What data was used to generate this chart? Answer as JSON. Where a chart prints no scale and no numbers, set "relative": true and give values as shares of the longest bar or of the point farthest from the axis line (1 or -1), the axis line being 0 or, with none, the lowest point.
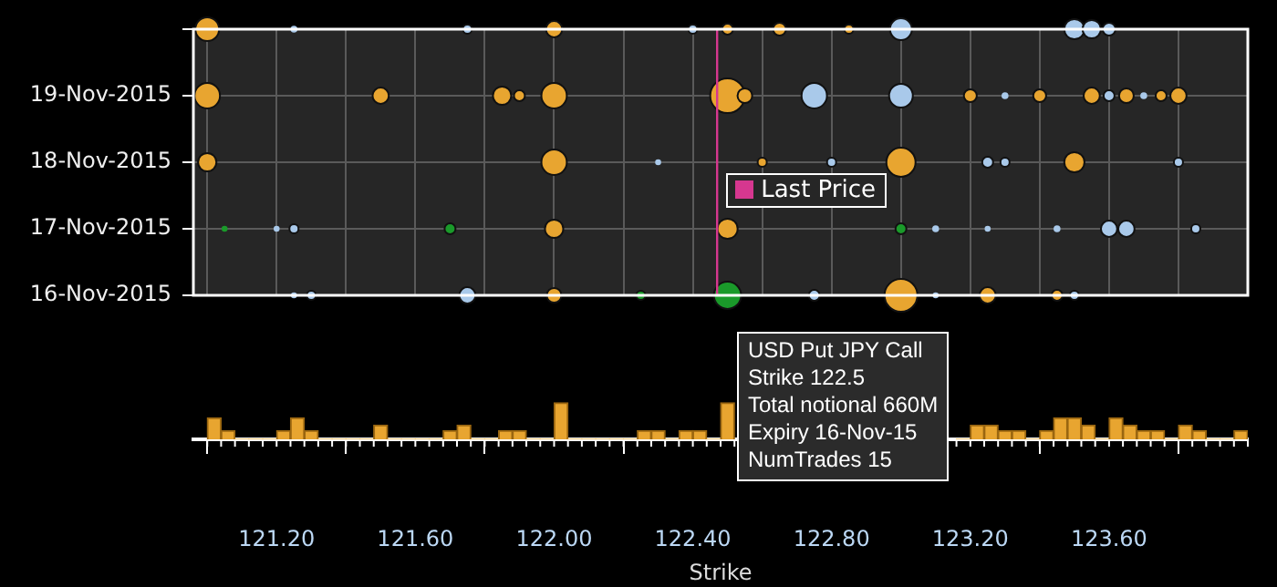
{
  "chart_data": [
    {
      "type": "bubble",
      "orientation": "horizontal",
      "categories": [
        null,
        "19-Nov-2015",
        "18-Nov-2015",
        "17-Nov-2015",
        "16-Nov-2015"
      ],
      "xlim": [
        120.96,
        124.0
      ],
      "xticks": [
        {
          "value": 121.0,
          "label": null
        },
        {
          "value": 121.2,
          "label": null
        },
        {
          "value": 121.4,
          "label": null
        },
        {
          "value": 121.6,
          "label": null
        },
        {
          "value": 121.8,
          "label": null
        },
        {
          "value": 122.0,
          "label": null
        },
        {
          "value": 122.2,
          "label": null
        },
        {
          "value": 122.4,
          "label": null
        },
        {
          "value": 122.6,
          "label": null
        },
        {
          "value": 122.8,
          "label": null
        },
        {
          "value": 123.0,
          "label": null
        },
        {
          "value": 123.2,
          "label": null
        },
        {
          "value": 123.4,
          "label": null
        },
        {
          "value": 123.6,
          "label": null
        },
        {
          "value": 123.8,
          "label": null
        }
      ],
      "tick_labels": "y",
      "grid": true,
      "legend": false,
      "ref_lines": [
        {
          "axis": "x",
          "value": 122.47,
          "label": "Last Price",
          "color": "#d6378f"
        }
      ],
      "series": [
        {
          "color": "#e8a530",
          "values": [
            121.0,
            122.0,
            122.5,
            122.65,
            122.85,
            121.0,
            121.5,
            121.85,
            121.9,
            122.0,
            122.5,
            122.55,
            123.2,
            123.4,
            123.55,
            123.65,
            123.75,
            123.8,
            121.0,
            122.0,
            122.6,
            123.0,
            123.5,
            122.0,
            122.5,
            122.0,
            123.0,
            123.25,
            123.45
          ],
          "x": [
            null,
            null,
            null,
            null,
            null,
            "19-Nov-2015",
            "19-Nov-2015",
            "19-Nov-2015",
            "19-Nov-2015",
            "19-Nov-2015",
            "19-Nov-2015",
            "19-Nov-2015",
            "19-Nov-2015",
            "19-Nov-2015",
            "19-Nov-2015",
            "19-Nov-2015",
            "19-Nov-2015",
            "19-Nov-2015",
            "18-Nov-2015",
            "18-Nov-2015",
            "18-Nov-2015",
            "18-Nov-2015",
            "18-Nov-2015",
            "17-Nov-2015",
            "17-Nov-2015",
            "16-Nov-2015",
            "16-Nov-2015",
            "16-Nov-2015",
            "16-Nov-2015"
          ],
          "sizes": [
            0.47,
            0.22,
            0.1,
            0.14,
            0.07,
            0.54,
            0.22,
            0.28,
            0.1,
            0.54,
            1,
            0.18,
            0.14,
            0.14,
            0.22,
            0.18,
            0.1,
            0.22,
            0.28,
            0.54,
            0.07,
            0.71,
            0.34,
            0.28,
            0.34,
            0.18,
            0.9,
            0.22,
            0.1
          ]
        },
        {
          "color": "#a9c9ea",
          "values": [
            121.25,
            121.75,
            122.4,
            123.0,
            123.5,
            123.55,
            123.6,
            122.75,
            123.0,
            123.3,
            123.6,
            123.7,
            122.3,
            122.8,
            123.25,
            123.3,
            123.8,
            121.2,
            121.25,
            123.1,
            123.25,
            123.45,
            123.6,
            123.65,
            123.85,
            121.25,
            121.3,
            121.75,
            122.75,
            123.1,
            123.5
          ],
          "x": [
            null,
            null,
            null,
            null,
            null,
            null,
            null,
            "19-Nov-2015",
            "19-Nov-2015",
            "19-Nov-2015",
            "19-Nov-2015",
            "19-Nov-2015",
            "18-Nov-2015",
            "18-Nov-2015",
            "18-Nov-2015",
            "18-Nov-2015",
            "18-Nov-2015",
            "17-Nov-2015",
            "17-Nov-2015",
            "17-Nov-2015",
            "17-Nov-2015",
            "17-Nov-2015",
            "17-Nov-2015",
            "17-Nov-2015",
            "17-Nov-2015",
            "16-Nov-2015",
            "16-Nov-2015",
            "16-Nov-2015",
            "16-Nov-2015",
            "16-Nov-2015",
            "16-Nov-2015"
          ],
          "sizes": [
            0.04,
            0.07,
            0.07,
            0.4,
            0.34,
            0.28,
            0.14,
            0.54,
            0.47,
            0.04,
            0.1,
            0.04,
            0.03,
            0.07,
            0.1,
            0.07,
            0.07,
            0.03,
            0.07,
            0.04,
            0.03,
            0.04,
            0.22,
            0.22,
            0.07,
            0.03,
            0.07,
            0.22,
            0.1,
            0.03,
            0.07
          ]
        },
        {
          "color": "#1a9a2a",
          "values": [
            121.05,
            121.7,
            123.0,
            122.25,
            122.5
          ],
          "x": [
            "17-Nov-2015",
            "17-Nov-2015",
            "17-Nov-2015",
            "16-Nov-2015",
            "16-Nov-2015"
          ],
          "sizes": [
            0.03,
            0.1,
            0.1,
            0.07,
            0.62
          ]
        }
      ]
    },
    {
      "type": "bar",
      "relative": true,
      "color": "#e8a530",
      "xlabel": "Strike",
      "xlim": [
        120.96,
        124.0
      ],
      "xticks": [
        {
          "value": 121.2,
          "label": "121.20"
        },
        {
          "value": 121.6,
          "label": "121.60"
        },
        {
          "value": 122.0,
          "label": "122.00"
        },
        {
          "value": 122.4,
          "label": "122.40"
        },
        {
          "value": 122.8,
          "label": "122.80"
        },
        {
          "value": 123.2,
          "label": "123.20"
        },
        {
          "value": 123.6,
          "label": "123.60"
        }
      ],
      "tick_labels": "x",
      "grid": false,
      "legend": false,
      "x": [
        121.02,
        121.06,
        121.1,
        121.14,
        121.18,
        121.22,
        121.26,
        121.3,
        121.34,
        121.38,
        121.42,
        121.46,
        121.5,
        121.54,
        121.58,
        121.62,
        121.66,
        121.7,
        121.74,
        121.78,
        121.82,
        121.86,
        121.9,
        121.94,
        121.98,
        122.02,
        122.06,
        122.1,
        122.14,
        122.18,
        122.22,
        122.26,
        122.3,
        122.34,
        122.38,
        122.42,
        122.46,
        122.5,
        122.54,
        122.58,
        122.62,
        122.66,
        122.7,
        122.74,
        122.78,
        122.82,
        122.86,
        122.9,
        122.94,
        122.98,
        123.02,
        123.06,
        123.1,
        123.14,
        123.18,
        123.22,
        123.26,
        123.3,
        123.34,
        123.38,
        123.42,
        123.46,
        123.5,
        123.54,
        123.58,
        123.62,
        123.66,
        123.7,
        123.74,
        123.78,
        123.82,
        123.86,
        123.9,
        123.94,
        123.98
      ],
      "values": [
        0.59,
        0.24,
        0,
        0,
        0,
        0.24,
        0.59,
        0.24,
        0,
        0,
        0,
        0,
        0.39,
        0,
        0,
        0,
        0,
        0.24,
        0.39,
        0,
        0,
        0.24,
        0.24,
        0,
        0,
        1,
        0,
        0,
        0,
        0,
        0,
        0.24,
        0.24,
        0,
        0.24,
        0.24,
        0,
        1,
        null,
        null,
        null,
        null,
        null,
        null,
        null,
        null,
        null,
        null,
        null,
        null,
        null,
        null,
        null,
        null,
        0,
        0.39,
        0.39,
        0.24,
        0.24,
        0,
        0.24,
        0.59,
        0.59,
        0.39,
        0,
        0.59,
        0.39,
        0.24,
        0.24,
        0,
        0.39,
        0.24,
        0,
        0,
        0.24
      ],
      "annotations": [
        "USD Put JPY Call",
        "Strike 122.5",
        "Total notional 660M",
        "Expiry 16-Nov-15",
        "NumTrades 15"
      ]
    }
  ]
}
